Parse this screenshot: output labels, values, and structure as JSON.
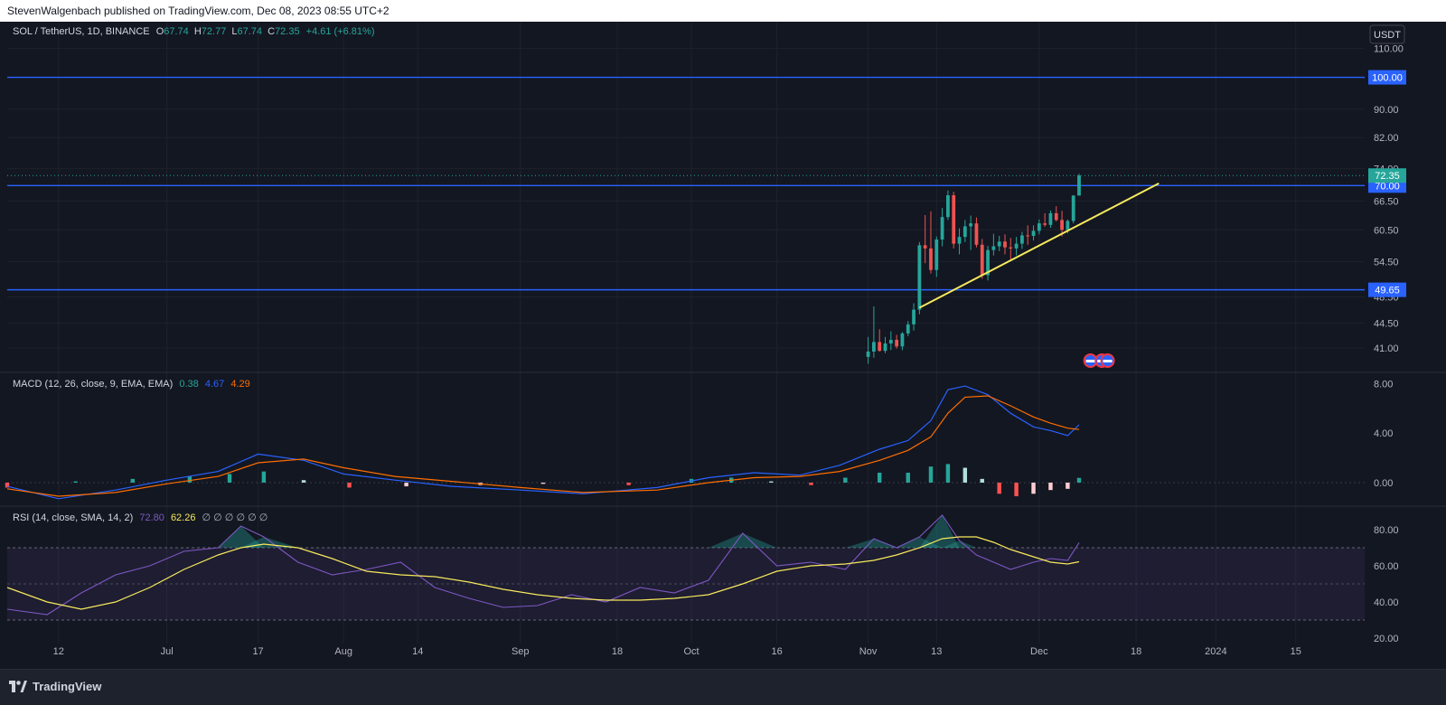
{
  "header": {
    "publisher": "StevenWalgenbach published on TradingView.com, Dec 08, 2023 08:55 UTC+2"
  },
  "legend": {
    "symbol": "SOL / TetherUS, 1D, BINANCE",
    "o_label": "O",
    "o": "67.74",
    "h_label": "H",
    "h": "72.77",
    "l_label": "L",
    "l": "67.74",
    "c_label": "C",
    "c": "72.35",
    "change": "+4.61 (+6.81%)"
  },
  "currency_button": "USDT",
  "price_axis": {
    "ticks": [
      "110.00",
      "90.00",
      "82.00",
      "74.00",
      "66.50",
      "60.50",
      "54.50",
      "48.50",
      "44.50",
      "41.00"
    ],
    "tick_values": [
      110,
      90,
      82,
      74,
      66.5,
      60.5,
      54.5,
      48.5,
      44.5,
      41
    ]
  },
  "hlines": [
    {
      "value": 100.0,
      "label": "100.00"
    },
    {
      "value": 70.0,
      "label": "70.00"
    },
    {
      "value": 49.65,
      "label": "49.65"
    }
  ],
  "last_price": {
    "value": 72.35,
    "label": "72.35"
  },
  "trendline": {
    "from": {
      "date": "2023-11-10",
      "price": 46.8
    },
    "to": {
      "date": "2023-12-22",
      "price": 70.5
    }
  },
  "macd": {
    "title": "MACD (12, 26, close, 9, EMA, EMA)",
    "hist": "0.38",
    "macd": "4.67",
    "signal": "4.29",
    "ticks": [
      "8.00",
      "4.00",
      "0.00"
    ],
    "tick_values": [
      8,
      4,
      0
    ]
  },
  "rsi": {
    "title": "RSI (14, close, SMA, 14, 2)",
    "rsi": "72.80",
    "ma": "62.26",
    "extras": "∅ ∅ ∅ ∅ ∅ ∅",
    "ticks": [
      "80.00",
      "60.00",
      "40.00",
      "20.00"
    ],
    "tick_values": [
      80,
      60,
      40,
      20
    ],
    "bands": [
      70,
      50,
      30
    ]
  },
  "time_axis": [
    "12",
    "Jul",
    "17",
    "Aug",
    "14",
    "Sep",
    "18",
    "Oct",
    "16",
    "Nov",
    "13",
    "Dec",
    "18",
    "2024",
    "15"
  ],
  "time_axis_dates": [
    "2023-06-12",
    "2023-07-01",
    "2023-07-17",
    "2023-08-01",
    "2023-08-14",
    "2023-09-01",
    "2023-09-18",
    "2023-10-01",
    "2023-10-16",
    "2023-11-01",
    "2023-11-13",
    "2023-12-01",
    "2023-12-18",
    "2024-01-01",
    "2024-01-15"
  ],
  "footer": {
    "brand": "TradingView"
  },
  "colors": {
    "background": "#131722",
    "up": "#26a69a",
    "down": "#ef5350",
    "hline": "#2962ff",
    "trendline": "#f7e95c",
    "macd_line": "#2962ff",
    "signal_line": "#ff6d00",
    "rsi_line": "#7e57c2",
    "rsi_ma": "#f7e95c",
    "text": "#d1d4dc",
    "axis_text": "#b2b5be"
  },
  "chart_data": [
    {
      "type": "candlestick",
      "title": "SOL / TetherUS, 1D, BINANCE",
      "ylim": [
        38.5,
        118
      ],
      "x": [
        "2023-11-01",
        "2023-11-02",
        "2023-11-03",
        "2023-11-04",
        "2023-11-05",
        "2023-11-06",
        "2023-11-07",
        "2023-11-08",
        "2023-11-09",
        "2023-11-10",
        "2023-11-11",
        "2023-11-12",
        "2023-11-13",
        "2023-11-14",
        "2023-11-15",
        "2023-11-16",
        "2023-11-17",
        "2023-11-18",
        "2023-11-19",
        "2023-11-20",
        "2023-11-21",
        "2023-11-22",
        "2023-11-23",
        "2023-11-24",
        "2023-11-25",
        "2023-11-26",
        "2023-11-27",
        "2023-11-28",
        "2023-11-29",
        "2023-11-30",
        "2023-12-01",
        "2023-12-02",
        "2023-12-03",
        "2023-12-04",
        "2023-12-05",
        "2023-12-06",
        "2023-12-07",
        "2023-12-08"
      ],
      "open": [
        39.8,
        40.5,
        41.8,
        40.6,
        41.6,
        42.1,
        41.2,
        43.0,
        44.3,
        46.5,
        57.5,
        56.9,
        53.0,
        58.6,
        63.1,
        67.8,
        57.8,
        59.1,
        61.2,
        61.8,
        57.6,
        52.1,
        56.6,
        57.3,
        58.2,
        57.1,
        56.9,
        57.8,
        59.4,
        59.3,
        60.3,
        61.8,
        61.5,
        63.9,
        62.5,
        60.5,
        62.3,
        67.74
      ],
      "high": [
        42.5,
        47.0,
        43.6,
        42.5,
        43.3,
        42.8,
        43.2,
        44.8,
        47.5,
        58.1,
        63.5,
        64.3,
        59.2,
        65.0,
        68.9,
        68.6,
        60.8,
        62.5,
        63.4,
        63.0,
        58.7,
        57.4,
        59.7,
        59.3,
        59.6,
        58.9,
        59.1,
        60.1,
        61.4,
        61.4,
        62.6,
        63.9,
        64.5,
        65.4,
        64.4,
        62.6,
        67.8,
        72.77
      ],
      "low": [
        38.9,
        39.7,
        40.5,
        40.3,
        40.7,
        40.9,
        40.7,
        42.6,
        43.4,
        45.8,
        54.2,
        52.4,
        51.8,
        57.3,
        62.5,
        56.9,
        55.8,
        58.1,
        56.6,
        57.1,
        51.5,
        51.2,
        55.6,
        56.4,
        55.8,
        54.8,
        55.6,
        56.8,
        57.6,
        58.4,
        59.6,
        61.1,
        60.9,
        62.2,
        59.2,
        59.8,
        61.8,
        67.74
      ],
      "close": [
        40.5,
        41.8,
        40.6,
        41.6,
        42.1,
        41.2,
        43.0,
        44.3,
        46.5,
        57.5,
        56.9,
        53.0,
        58.6,
        63.1,
        67.8,
        57.8,
        59.1,
        61.2,
        61.8,
        57.6,
        52.1,
        56.6,
        57.3,
        58.2,
        57.1,
        56.9,
        57.8,
        59.4,
        59.3,
        60.3,
        61.8,
        61.5,
        63.9,
        62.5,
        60.5,
        62.3,
        67.74,
        72.35
      ]
    },
    {
      "type": "line",
      "title": "MACD (12, 26, close, 9, EMA, EMA)",
      "ylim": [
        -1.9,
        8.9
      ],
      "series": [
        {
          "name": "MACD",
          "x": [
            "2023-06-03",
            "2023-06-12",
            "2023-06-22",
            "2023-07-01",
            "2023-07-10",
            "2023-07-17",
            "2023-07-25",
            "2023-08-01",
            "2023-08-10",
            "2023-08-20",
            "2023-09-01",
            "2023-09-12",
            "2023-09-25",
            "2023-10-04",
            "2023-10-12",
            "2023-10-20",
            "2023-10-27",
            "2023-11-03",
            "2023-11-08",
            "2023-11-12",
            "2023-11-15",
            "2023-11-18",
            "2023-11-22",
            "2023-11-26",
            "2023-11-30",
            "2023-12-03",
            "2023-12-06",
            "2023-12-08"
          ],
          "values": [
            -0.3,
            -1.3,
            -0.6,
            0.2,
            0.9,
            2.3,
            1.8,
            0.7,
            0.2,
            -0.3,
            -0.6,
            -0.9,
            -0.4,
            0.4,
            0.8,
            0.6,
            1.4,
            2.7,
            3.4,
            5.0,
            7.5,
            7.8,
            7.1,
            5.6,
            4.5,
            4.2,
            3.8,
            4.67
          ]
        },
        {
          "name": "Signal",
          "x": [
            "2023-06-03",
            "2023-06-12",
            "2023-06-22",
            "2023-07-01",
            "2023-07-10",
            "2023-07-17",
            "2023-07-25",
            "2023-08-01",
            "2023-08-10",
            "2023-08-20",
            "2023-09-01",
            "2023-09-12",
            "2023-09-25",
            "2023-10-04",
            "2023-10-12",
            "2023-10-20",
            "2023-10-27",
            "2023-11-03",
            "2023-11-08",
            "2023-11-12",
            "2023-11-15",
            "2023-11-18",
            "2023-11-22",
            "2023-11-26",
            "2023-11-30",
            "2023-12-03",
            "2023-12-06",
            "2023-12-08"
          ],
          "values": [
            -0.5,
            -1.1,
            -0.8,
            -0.1,
            0.5,
            1.6,
            1.9,
            1.2,
            0.5,
            0.1,
            -0.4,
            -0.8,
            -0.6,
            0.0,
            0.4,
            0.5,
            0.9,
            1.8,
            2.6,
            3.7,
            5.6,
            6.9,
            7.0,
            6.2,
            5.3,
            4.8,
            4.4,
            4.29
          ]
        }
      ],
      "histogram": {
        "name": "Histogram",
        "x": [
          "2023-06-03",
          "2023-06-15",
          "2023-06-25",
          "2023-07-05",
          "2023-07-12",
          "2023-07-18",
          "2023-07-25",
          "2023-08-02",
          "2023-08-12",
          "2023-08-25",
          "2023-09-05",
          "2023-09-20",
          "2023-10-01",
          "2023-10-08",
          "2023-10-15",
          "2023-10-22",
          "2023-10-28",
          "2023-11-03",
          "2023-11-08",
          "2023-11-12",
          "2023-11-15",
          "2023-11-18",
          "2023-11-21",
          "2023-11-24",
          "2023-11-27",
          "2023-11-30",
          "2023-12-03",
          "2023-12-06",
          "2023-12-08"
        ],
        "values": [
          -0.4,
          0.1,
          0.3,
          0.5,
          0.7,
          0.9,
          0.2,
          -0.4,
          -0.3,
          -0.2,
          -0.1,
          -0.2,
          0.3,
          0.4,
          0.1,
          -0.2,
          0.4,
          0.8,
          0.8,
          1.3,
          1.5,
          1.2,
          0.3,
          -0.9,
          -1.1,
          -0.9,
          -0.6,
          -0.5,
          0.38
        ]
      }
    },
    {
      "type": "line",
      "title": "RSI (14, close, SMA, 14, 2)",
      "ylim": [
        17,
        93
      ],
      "series": [
        {
          "name": "RSI",
          "x": [
            "2023-06-03",
            "2023-06-10",
            "2023-06-16",
            "2023-06-22",
            "2023-06-28",
            "2023-07-04",
            "2023-07-10",
            "2023-07-14",
            "2023-07-18",
            "2023-07-24",
            "2023-07-30",
            "2023-08-05",
            "2023-08-11",
            "2023-08-17",
            "2023-08-23",
            "2023-08-29",
            "2023-09-04",
            "2023-09-10",
            "2023-09-16",
            "2023-09-22",
            "2023-09-28",
            "2023-10-04",
            "2023-10-10",
            "2023-10-16",
            "2023-10-22",
            "2023-10-28",
            "2023-11-02",
            "2023-11-06",
            "2023-11-10",
            "2023-11-14",
            "2023-11-17",
            "2023-11-20",
            "2023-11-23",
            "2023-11-26",
            "2023-11-30",
            "2023-12-03",
            "2023-12-06",
            "2023-12-08"
          ],
          "values": [
            36,
            33,
            45,
            55,
            60,
            68,
            70,
            82,
            76,
            62,
            55,
            58,
            62,
            48,
            42,
            37,
            38,
            44,
            40,
            48,
            45,
            52,
            78,
            60,
            62,
            58,
            75,
            70,
            76,
            88,
            74,
            66,
            62,
            58,
            62,
            64,
            63,
            72.8
          ]
        },
        {
          "name": "RSI-based MA",
          "x": [
            "2023-06-03",
            "2023-06-10",
            "2023-06-16",
            "2023-06-22",
            "2023-06-28",
            "2023-07-04",
            "2023-07-10",
            "2023-07-14",
            "2023-07-18",
            "2023-07-24",
            "2023-07-30",
            "2023-08-05",
            "2023-08-11",
            "2023-08-17",
            "2023-08-23",
            "2023-08-29",
            "2023-09-04",
            "2023-09-10",
            "2023-09-16",
            "2023-09-22",
            "2023-09-28",
            "2023-10-04",
            "2023-10-10",
            "2023-10-16",
            "2023-10-22",
            "2023-10-28",
            "2023-11-02",
            "2023-11-06",
            "2023-11-10",
            "2023-11-14",
            "2023-11-17",
            "2023-11-20",
            "2023-11-23",
            "2023-11-26",
            "2023-11-30",
            "2023-12-03",
            "2023-12-06",
            "2023-12-08"
          ],
          "values": [
            48,
            40,
            36,
            40,
            48,
            58,
            66,
            70,
            72,
            70,
            64,
            57,
            55,
            54,
            51,
            47,
            44,
            42,
            41,
            41,
            42,
            44,
            50,
            57,
            60,
            61,
            63,
            66,
            70,
            75,
            76,
            76,
            73,
            69,
            65,
            62,
            61,
            62.26
          ]
        }
      ]
    }
  ]
}
